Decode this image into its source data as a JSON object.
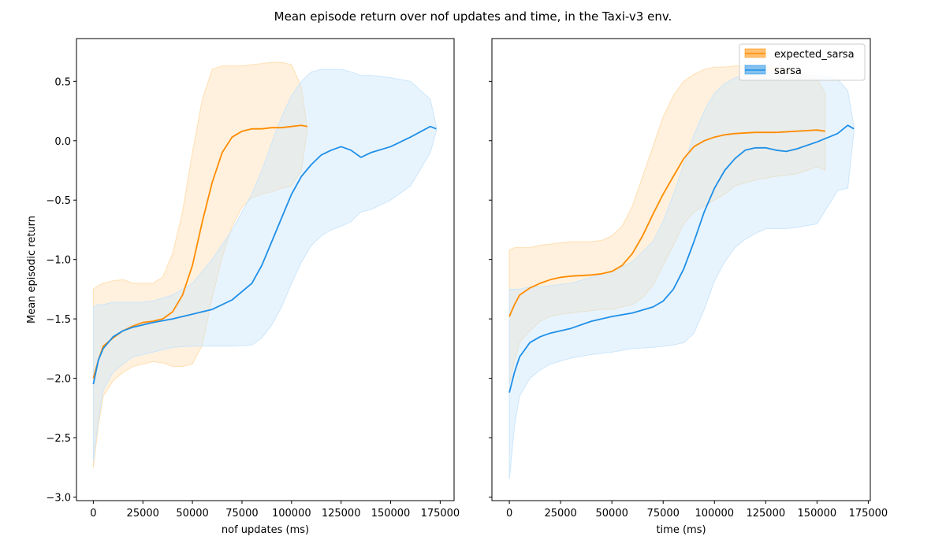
{
  "figure": {
    "title": "Mean episode return over nof updates and time, in the Taxi-v3 env."
  },
  "chart_data": [
    {
      "type": "line",
      "xlabel": "nof updates (ms)",
      "ylabel": "Mean episodic return",
      "xlim": [
        -8500,
        182000
      ],
      "ylim": [
        -3.03,
        0.86
      ],
      "xticks": [
        0,
        25000,
        50000,
        75000,
        100000,
        125000,
        150000,
        175000
      ],
      "yticks": [
        -3.0,
        -2.5,
        -2.0,
        -1.5,
        -1.0,
        -0.5,
        0.0,
        0.5
      ],
      "ytick_labels": [
        "−3.0",
        "−2.5",
        "−2.0",
        "−1.5",
        "−1.0",
        "−0.5",
        "0.0",
        "0.5"
      ],
      "legend": null,
      "series": [
        {
          "name": "expected_sarsa",
          "color": "#ff8c00",
          "band_color": "#ffdfb3",
          "x": [
            0,
            2500,
            5000,
            10000,
            15000,
            20000,
            25000,
            30000,
            35000,
            40000,
            45000,
            50000,
            55000,
            60000,
            65000,
            70000,
            75000,
            80000,
            85000,
            90000,
            95000,
            100000,
            105000,
            108000
          ],
          "mean": [
            -2.0,
            -1.85,
            -1.73,
            -1.66,
            -1.6,
            -1.56,
            -1.53,
            -1.52,
            -1.5,
            -1.44,
            -1.3,
            -1.05,
            -0.68,
            -0.35,
            -0.1,
            0.03,
            0.08,
            0.1,
            0.1,
            0.11,
            0.11,
            0.12,
            0.13,
            0.12
          ],
          "upper": [
            -1.25,
            -1.22,
            -1.2,
            -1.18,
            -1.17,
            -1.2,
            -1.2,
            -1.2,
            -1.15,
            -0.95,
            -0.6,
            -0.1,
            0.35,
            0.6,
            0.63,
            0.63,
            0.63,
            0.64,
            0.65,
            0.66,
            0.66,
            0.64,
            0.45,
            0.1
          ],
          "lower": [
            -2.75,
            -2.4,
            -2.15,
            -2.02,
            -1.95,
            -1.9,
            -1.88,
            -1.86,
            -1.87,
            -1.9,
            -1.9,
            -1.88,
            -1.72,
            -1.32,
            -0.98,
            -0.72,
            -0.56,
            -0.48,
            -0.45,
            -0.43,
            -0.4,
            -0.38,
            -0.25,
            0.1
          ]
        },
        {
          "name": "sarsa",
          "color": "#1e8fe8",
          "band_color": "#cce6fb",
          "x": [
            0,
            2500,
            5000,
            10000,
            15000,
            20000,
            25000,
            30000,
            40000,
            50000,
            60000,
            70000,
            80000,
            85000,
            90000,
            95000,
            100000,
            105000,
            110000,
            115000,
            120000,
            125000,
            130000,
            135000,
            140000,
            150000,
            160000,
            170000,
            173000
          ],
          "mean": [
            -2.05,
            -1.85,
            -1.75,
            -1.65,
            -1.6,
            -1.57,
            -1.55,
            -1.53,
            -1.5,
            -1.46,
            -1.42,
            -1.34,
            -1.2,
            -1.05,
            -0.85,
            -0.65,
            -0.45,
            -0.3,
            -0.2,
            -0.12,
            -0.08,
            -0.05,
            -0.08,
            -0.14,
            -0.1,
            -0.05,
            0.03,
            0.12,
            0.1
          ],
          "upper": [
            -1.4,
            -1.38,
            -1.38,
            -1.36,
            -1.36,
            -1.36,
            -1.36,
            -1.35,
            -1.3,
            -1.2,
            -1.0,
            -0.75,
            -0.45,
            -0.25,
            -0.02,
            0.2,
            0.38,
            0.5,
            0.58,
            0.6,
            0.6,
            0.6,
            0.58,
            0.55,
            0.55,
            0.53,
            0.5,
            0.35,
            0.12
          ],
          "lower": [
            -2.7,
            -2.35,
            -2.1,
            -1.95,
            -1.88,
            -1.82,
            -1.8,
            -1.78,
            -1.74,
            -1.73,
            -1.73,
            -1.73,
            -1.72,
            -1.66,
            -1.55,
            -1.4,
            -1.2,
            -1.02,
            -0.88,
            -0.8,
            -0.75,
            -0.72,
            -0.68,
            -0.6,
            -0.58,
            -0.5,
            -0.38,
            -0.1,
            0.08
          ]
        }
      ]
    },
    {
      "type": "line",
      "xlabel": "time (ms)",
      "ylabel": "",
      "xlim": [
        -8500,
        176000
      ],
      "ylim": [
        -3.03,
        0.86
      ],
      "xticks": [
        0,
        25000,
        50000,
        75000,
        100000,
        125000,
        150000,
        175000
      ],
      "yticks": [
        -3.0,
        -2.5,
        -2.0,
        -1.5,
        -1.0,
        -0.5,
        0.0,
        0.5
      ],
      "show_ytick_labels": false,
      "legend": "top-right",
      "series": [
        {
          "name": "expected_sarsa",
          "color": "#ff8c00",
          "band_color": "#ffdfb3",
          "x": [
            0,
            2500,
            5000,
            10000,
            15000,
            20000,
            25000,
            30000,
            40000,
            45000,
            50000,
            55000,
            60000,
            65000,
            70000,
            75000,
            80000,
            85000,
            90000,
            95000,
            100000,
            105000,
            110000,
            120000,
            130000,
            140000,
            150000,
            154000
          ],
          "mean": [
            -1.48,
            -1.38,
            -1.3,
            -1.24,
            -1.2,
            -1.17,
            -1.15,
            -1.14,
            -1.13,
            -1.12,
            -1.1,
            -1.05,
            -0.95,
            -0.8,
            -0.62,
            -0.45,
            -0.3,
            -0.15,
            -0.05,
            0.0,
            0.03,
            0.05,
            0.06,
            0.07,
            0.07,
            0.08,
            0.09,
            0.08
          ],
          "upper": [
            -0.92,
            -0.9,
            -0.9,
            -0.9,
            -0.88,
            -0.87,
            -0.86,
            -0.85,
            -0.85,
            -0.84,
            -0.8,
            -0.72,
            -0.55,
            -0.3,
            -0.05,
            0.2,
            0.38,
            0.5,
            0.56,
            0.6,
            0.62,
            0.62,
            0.63,
            0.63,
            0.62,
            0.57,
            0.52,
            0.4
          ],
          "lower": [
            -2.05,
            -1.85,
            -1.7,
            -1.6,
            -1.52,
            -1.48,
            -1.46,
            -1.45,
            -1.43,
            -1.42,
            -1.42,
            -1.4,
            -1.38,
            -1.32,
            -1.22,
            -1.05,
            -0.88,
            -0.7,
            -0.6,
            -0.55,
            -0.5,
            -0.45,
            -0.38,
            -0.33,
            -0.3,
            -0.28,
            -0.22,
            -0.25
          ]
        },
        {
          "name": "sarsa",
          "color": "#1e8fe8",
          "band_color": "#cce6fb",
          "x": [
            0,
            2500,
            5000,
            10000,
            15000,
            20000,
            30000,
            40000,
            50000,
            60000,
            70000,
            75000,
            80000,
            85000,
            90000,
            95000,
            100000,
            105000,
            110000,
            115000,
            120000,
            125000,
            130000,
            135000,
            140000,
            150000,
            160000,
            165000,
            168000
          ],
          "mean": [
            -2.12,
            -1.95,
            -1.82,
            -1.7,
            -1.65,
            -1.62,
            -1.58,
            -1.52,
            -1.48,
            -1.45,
            -1.4,
            -1.35,
            -1.25,
            -1.08,
            -0.85,
            -0.6,
            -0.4,
            -0.25,
            -0.15,
            -0.08,
            -0.06,
            -0.06,
            -0.08,
            -0.09,
            -0.07,
            -0.01,
            0.06,
            0.13,
            0.1
          ],
          "upper": [
            -1.25,
            -1.25,
            -1.25,
            -1.23,
            -1.23,
            -1.22,
            -1.2,
            -1.15,
            -1.1,
            -1.02,
            -0.85,
            -0.68,
            -0.45,
            -0.2,
            0.05,
            0.25,
            0.4,
            0.48,
            0.53,
            0.55,
            0.56,
            0.57,
            0.57,
            0.56,
            0.56,
            0.55,
            0.52,
            0.42,
            0.12
          ],
          "lower": [
            -2.85,
            -2.4,
            -2.15,
            -2.0,
            -1.93,
            -1.88,
            -1.83,
            -1.8,
            -1.78,
            -1.75,
            -1.74,
            -1.73,
            -1.72,
            -1.7,
            -1.62,
            -1.42,
            -1.18,
            -1.02,
            -0.9,
            -0.83,
            -0.78,
            -0.74,
            -0.74,
            -0.74,
            -0.73,
            -0.7,
            -0.42,
            -0.4,
            0.08
          ]
        }
      ]
    }
  ]
}
